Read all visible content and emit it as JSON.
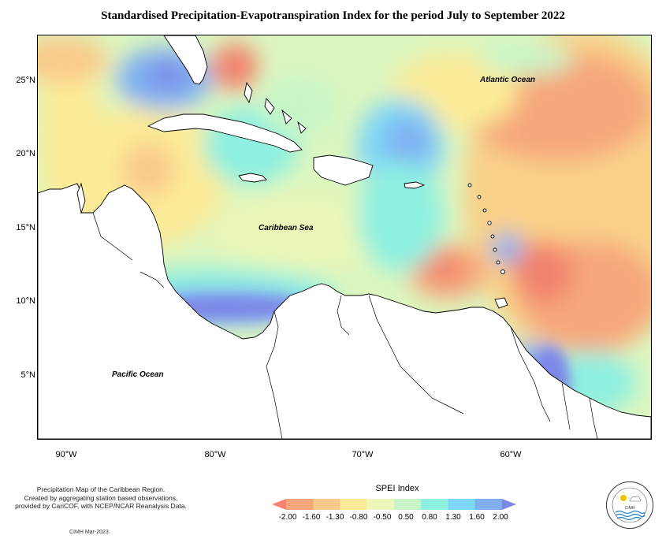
{
  "title": "Standardised Precipitation-Evapotranspiration Index for the period July to September 2022",
  "map": {
    "lat_labels": [
      "25°N",
      "20°N",
      "15°N",
      "10°N",
      "5°N"
    ],
    "lon_labels": [
      "90°W",
      "80°W",
      "70°W",
      "60°W"
    ],
    "ocean_labels": {
      "atlantic": "Atlantic Ocean",
      "caribbean": "Caribbean Sea",
      "pacific": "Pacific Ocean"
    }
  },
  "legend": {
    "title": "SPEI Index",
    "ticks": [
      "-2.00",
      "-1.60",
      "-1.30",
      "-0.80",
      "-0.50",
      "0.50",
      "0.80",
      "1.30",
      "1.60",
      "2.00"
    ],
    "colors": [
      "#f2836d",
      "#f6a77c",
      "#f9cb8a",
      "#fbeb98",
      "#eaf7b8",
      "#c8f5c8",
      "#8ef0e0",
      "#7fd7f7",
      "#80b0f2",
      "#7d87e8"
    ]
  },
  "footer": {
    "lines": [
      "Precipitation Map of the Caribbean Region.",
      "Created by aggregating station based observations,",
      "provided by CariCOF, with NCEP/NCAR Reanalysis Data."
    ],
    "credit": "CIMH Mar-2023"
  },
  "logo": {
    "text": "CIMH"
  }
}
